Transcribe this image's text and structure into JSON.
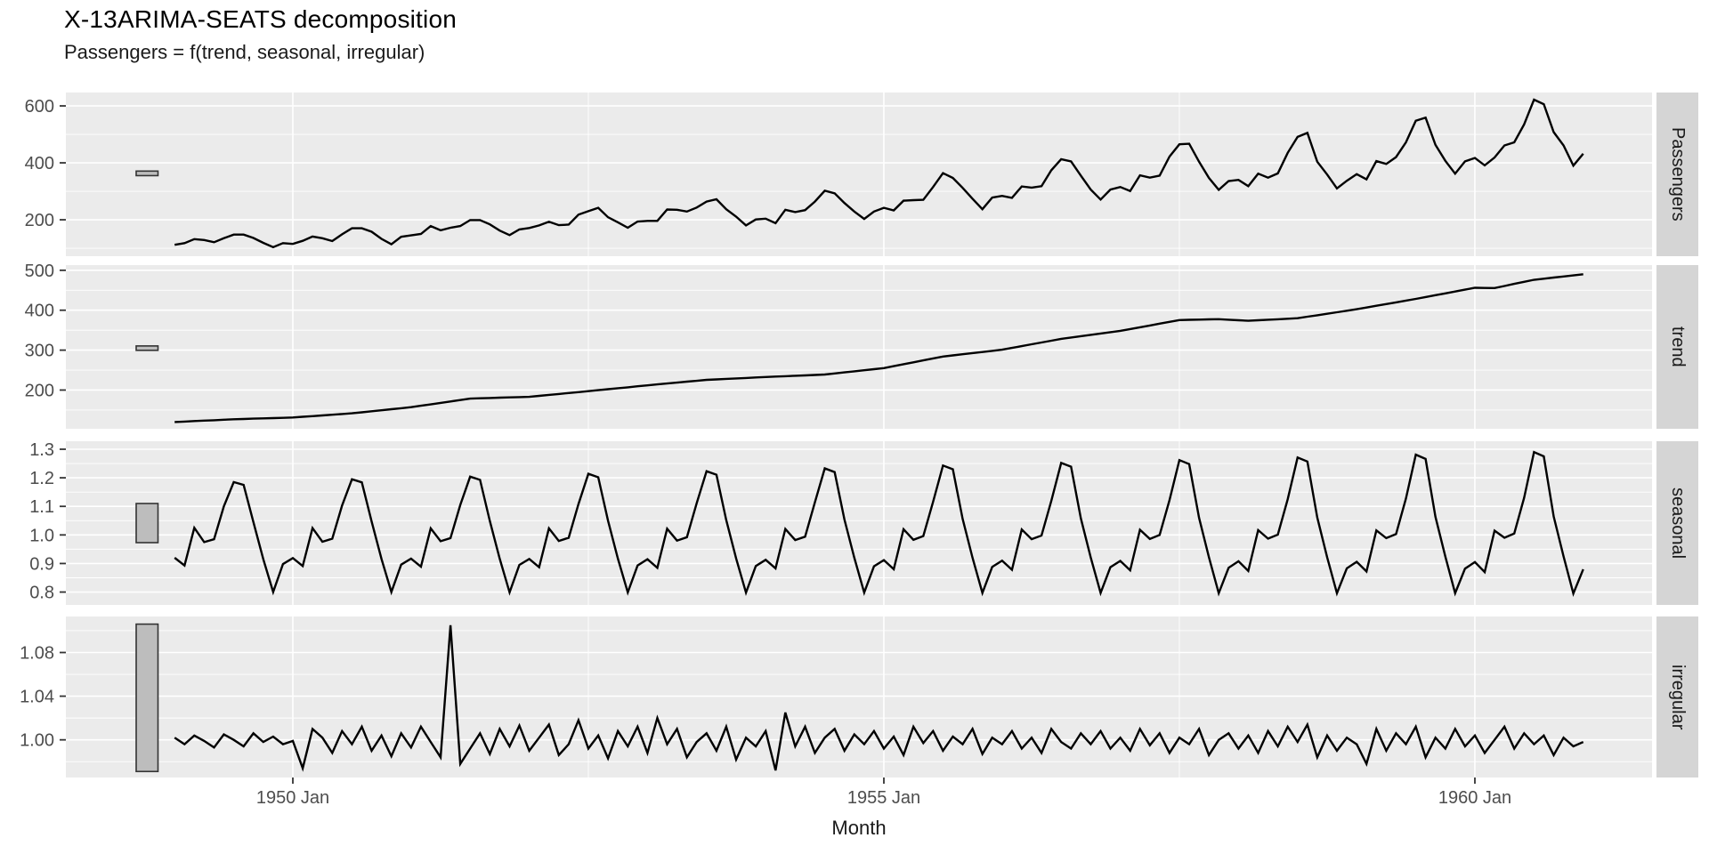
{
  "title": "X-13ARIMA-SEATS decomposition",
  "subtitle": "Passengers = f(trend, seasonal, irregular)",
  "x_axis": {
    "title": "Month",
    "start": "1949 Jan",
    "end": "1960 Dec",
    "n_months": 144,
    "major_ticks": [
      {
        "month_index": 12,
        "label": "1950 Jan"
      },
      {
        "month_index": 72,
        "label": "1955 Jan"
      },
      {
        "month_index": 132,
        "label": "1960 Jan"
      }
    ],
    "minor_tick_month_indices": [
      42,
      102
    ]
  },
  "colors": {
    "panel_background": "#EBEBEB",
    "gridline": "#FFFFFF",
    "strip_background": "#D5D5D5",
    "series_line": "#000000",
    "axis_text": "#4D4D4D",
    "tick_mark": "#333333",
    "scale_bar_fill": "#BDBDBD",
    "scale_bar_border": "#333333"
  },
  "chart_data": [
    {
      "name": "Passengers",
      "type": "line",
      "ylim": [
        72,
        647
      ],
      "yticks": [
        {
          "v": 600,
          "label": "600"
        },
        {
          "v": 400,
          "label": "400"
        },
        {
          "v": 200,
          "label": "200"
        }
      ],
      "minor_yticks": [
        500,
        300,
        100
      ],
      "scale_bar": [
        355,
        371
      ],
      "values": [
        112,
        118,
        132,
        129,
        121,
        135,
        148,
        148,
        136,
        119,
        104,
        118,
        115,
        126,
        141,
        135,
        125,
        149,
        170,
        170,
        158,
        133,
        114,
        140,
        145,
        150,
        178,
        163,
        172,
        178,
        199,
        199,
        184,
        162,
        146,
        166,
        171,
        180,
        193,
        181,
        183,
        218,
        230,
        242,
        209,
        191,
        172,
        194,
        196,
        196,
        236,
        235,
        229,
        243,
        264,
        272,
        237,
        211,
        180,
        201,
        204,
        188,
        235,
        227,
        234,
        264,
        302,
        293,
        259,
        229,
        203,
        229,
        242,
        233,
        267,
        269,
        270,
        315,
        364,
        347,
        312,
        274,
        237,
        278,
        284,
        277,
        317,
        313,
        318,
        374,
        413,
        405,
        355,
        306,
        271,
        306,
        315,
        301,
        356,
        348,
        355,
        422,
        465,
        467,
        404,
        347,
        305,
        336,
        340,
        318,
        362,
        348,
        363,
        435,
        491,
        505,
        404,
        359,
        310,
        337,
        360,
        342,
        406,
        396,
        420,
        472,
        548,
        559,
        463,
        407,
        362,
        405,
        417,
        391,
        419,
        461,
        472,
        535,
        622,
        606,
        508,
        461,
        390,
        432
      ]
    },
    {
      "name": "trend",
      "type": "line",
      "ylim": [
        103,
        513
      ],
      "yticks": [
        {
          "v": 500,
          "label": "500"
        },
        {
          "v": 400,
          "label": "400"
        },
        {
          "v": 300,
          "label": "300"
        },
        {
          "v": 200,
          "label": "200"
        }
      ],
      "minor_yticks": [
        450,
        350,
        250,
        150
      ],
      "scale_bar": [
        299.5,
        310.5
      ],
      "values": [
        120.0,
        121.1,
        122.3,
        123.4,
        124.5,
        125.7,
        126.8,
        127.5,
        128.3,
        129.0,
        129.7,
        130.5,
        131.2,
        133.0,
        134.7,
        136.5,
        138.2,
        140.0,
        141.7,
        144.3,
        146.8,
        149.4,
        152.0,
        154.5,
        157.1,
        160.7,
        164.3,
        167.9,
        171.4,
        175.0,
        178.6,
        179.4,
        180.1,
        180.9,
        181.6,
        182.4,
        183.1,
        185.5,
        187.8,
        190.2,
        192.5,
        194.9,
        197.2,
        199.6,
        202.1,
        204.5,
        206.9,
        209.4,
        211.8,
        214.1,
        216.4,
        218.7,
        221.0,
        223.2,
        225.5,
        226.7,
        227.9,
        229.1,
        230.3,
        231.5,
        232.7,
        233.7,
        234.8,
        235.8,
        236.8,
        237.9,
        238.9,
        241.6,
        244.3,
        246.9,
        249.6,
        252.3,
        255.0,
        259.8,
        264.7,
        269.5,
        274.3,
        279.2,
        284.0,
        286.9,
        289.7,
        292.6,
        295.4,
        298.3,
        301.1,
        305.6,
        310.1,
        314.7,
        319.2,
        323.7,
        328.2,
        331.6,
        334.9,
        338.3,
        341.6,
        345.0,
        348.3,
        352.8,
        357.3,
        361.8,
        366.3,
        370.8,
        375.3,
        375.9,
        376.4,
        377.0,
        377.5,
        376.2,
        374.8,
        373.5,
        374.8,
        376.1,
        377.4,
        378.6,
        379.9,
        383.7,
        387.4,
        391.2,
        395.0,
        398.7,
        402.5,
        406.8,
        411.1,
        415.4,
        419.7,
        424.0,
        428.3,
        432.9,
        437.6,
        442.2,
        446.9,
        451.5,
        456.1,
        455.8,
        455.5,
        460.7,
        465.9,
        471.0,
        476.2,
        479.0,
        481.7,
        484.5,
        487.2,
        490.0
      ]
    },
    {
      "name": "seasonal",
      "type": "line",
      "ylim": [
        0.755,
        1.328
      ],
      "yticks": [
        {
          "v": 1.3,
          "label": "1.3"
        },
        {
          "v": 1.2,
          "label": "1.2"
        },
        {
          "v": 1.1,
          "label": "1.1"
        },
        {
          "v": 1.0,
          "label": "1.0"
        },
        {
          "v": 0.9,
          "label": "0.9"
        },
        {
          "v": 0.8,
          "label": "0.8"
        }
      ],
      "minor_yticks": [
        1.25,
        1.15,
        1.05,
        0.95,
        0.85
      ],
      "scale_bar": [
        0.973,
        1.11
      ],
      "values": [
        0.92,
        0.893,
        1.025,
        0.975,
        0.985,
        1.1,
        1.185,
        1.175,
        1.045,
        0.915,
        0.8,
        0.898,
        0.919,
        0.891,
        1.024,
        0.976,
        0.987,
        1.103,
        1.195,
        1.184,
        1.047,
        0.916,
        0.8,
        0.896,
        0.917,
        0.889,
        1.023,
        0.978,
        0.989,
        1.105,
        1.204,
        1.193,
        1.049,
        0.917,
        0.799,
        0.895,
        0.916,
        0.887,
        1.023,
        0.979,
        0.99,
        1.108,
        1.214,
        1.202,
        1.05,
        0.917,
        0.799,
        0.893,
        0.915,
        0.885,
        1.022,
        0.98,
        0.992,
        1.111,
        1.223,
        1.211,
        1.052,
        0.918,
        0.798,
        0.891,
        0.913,
        0.883,
        1.021,
        0.982,
        0.994,
        1.114,
        1.233,
        1.22,
        1.054,
        0.92,
        0.798,
        0.89,
        0.912,
        0.88,
        1.02,
        0.983,
        0.996,
        1.116,
        1.243,
        1.23,
        1.056,
        0.92,
        0.797,
        0.888,
        0.91,
        0.878,
        1.019,
        0.985,
        0.998,
        1.119,
        1.252,
        1.239,
        1.058,
        0.921,
        0.797,
        0.887,
        0.909,
        0.876,
        1.018,
        0.986,
        1.0,
        1.122,
        1.262,
        1.248,
        1.06,
        0.922,
        0.796,
        0.885,
        0.908,
        0.874,
        1.017,
        0.987,
        1.001,
        1.125,
        1.271,
        1.257,
        1.061,
        0.922,
        0.796,
        0.883,
        0.906,
        0.872,
        1.016,
        0.989,
        1.003,
        1.127,
        1.281,
        1.266,
        1.063,
        0.924,
        0.796,
        0.882,
        0.905,
        0.87,
        1.015,
        0.99,
        1.005,
        1.13,
        1.29,
        1.275,
        1.065,
        0.925,
        0.795,
        0.88
      ]
    },
    {
      "name": "irregular",
      "type": "line",
      "ylim": [
        0.9655,
        1.113
      ],
      "yticks": [
        {
          "v": 1.08,
          "label": "1.08"
        },
        {
          "v": 1.04,
          "label": "1.04"
        },
        {
          "v": 1.0,
          "label": "1.00"
        }
      ],
      "minor_yticks": [
        1.1,
        1.06,
        1.02,
        0.98
      ],
      "scale_bar": [
        0.971,
        1.106
      ],
      "values": [
        1.002,
        0.996,
        1.004,
        0.999,
        0.993,
        1.005,
        1.0,
        0.994,
        1.006,
        0.998,
        1.003,
        0.996,
        0.999,
        0.974,
        1.01,
        1.002,
        0.988,
        1.008,
        0.996,
        1.012,
        0.99,
        1.004,
        0.985,
        1.006,
        0.993,
        1.012,
        0.998,
        0.984,
        1.105,
        0.978,
        0.992,
        1.006,
        0.987,
        1.01,
        0.994,
        1.013,
        0.99,
        1.002,
        1.014,
        0.986,
        0.996,
        1.018,
        0.992,
        1.004,
        0.983,
        1.008,
        0.994,
        1.012,
        0.988,
        1.02,
        0.996,
        1.01,
        0.984,
        0.998,
        1.006,
        0.99,
        1.012,
        0.982,
        1.002,
        0.994,
        1.008,
        0.972,
        1.025,
        0.994,
        1.012,
        0.988,
        1.002,
        1.01,
        0.99,
        1.005,
        0.996,
        1.008,
        0.992,
        1.003,
        0.986,
        1.012,
        0.997,
        1.008,
        0.99,
        1.003,
        0.996,
        1.01,
        0.987,
        1.002,
        0.996,
        1.008,
        0.992,
        1.002,
        0.988,
        1.01,
        0.998,
        0.992,
        1.006,
        0.996,
        1.008,
        0.992,
        1.002,
        0.99,
        1.01,
        0.995,
        1.006,
        0.988,
        1.002,
        0.996,
        1.01,
        0.986,
        1.0,
        1.006,
        0.992,
        1.004,
        0.988,
        1.008,
        0.994,
        1.012,
        0.998,
        1.014,
        0.984,
        1.004,
        0.99,
        1.002,
        0.996,
        0.978,
        1.01,
        0.99,
        1.006,
        0.996,
        1.012,
        0.984,
        1.002,
        0.992,
        1.01,
        0.994,
        1.004,
        0.988,
        1.0,
        1.012,
        0.992,
        1.006,
        0.996,
        1.004,
        0.986,
        1.002,
        0.994,
        0.998
      ]
    }
  ]
}
